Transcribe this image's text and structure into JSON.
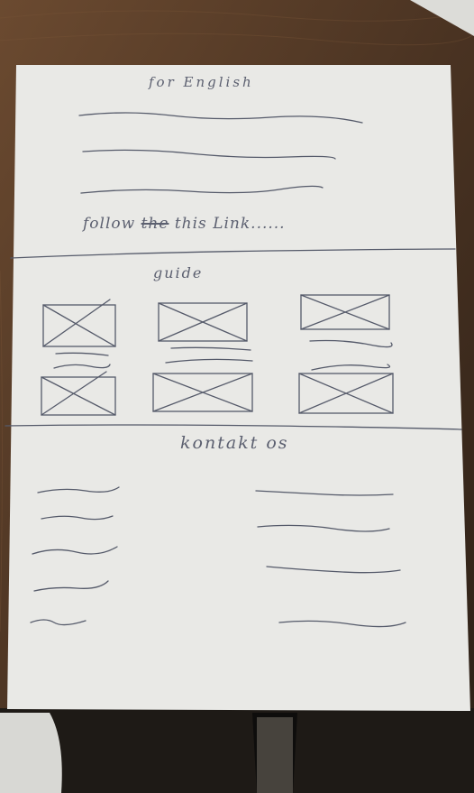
{
  "sketch": {
    "header_text": "for English",
    "follow_prefix": "follow",
    "follow_struck": "the",
    "follow_suffix": " this Link......",
    "guide_heading": "guide",
    "contact_heading": "kontakt os"
  },
  "colors": {
    "table": "#4a3322",
    "paper": "#e9e9e6",
    "pen": "#555a6a"
  }
}
